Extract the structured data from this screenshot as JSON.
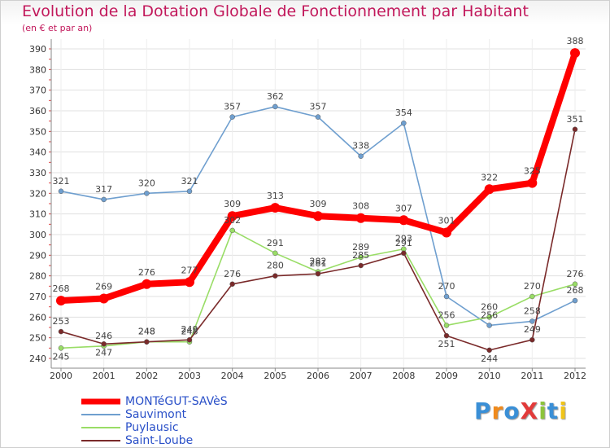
{
  "title": "Evolution de la Dotation Globale de Fonctionnement par Habitant",
  "subtitle": "(en € et par an)",
  "logo_text": "ProXiti",
  "colors": {
    "title": "#c2185b",
    "grid": "#e0e0e0",
    "legend_text": "#2a50c8"
  },
  "chart_data": {
    "type": "line",
    "title": "Evolution de la Dotation Globale de Fonctionnement par Habitant",
    "subtitle": "(en € et par an)",
    "xlabel": "",
    "ylabel": "",
    "categories": [
      "2000",
      "2001",
      "2002",
      "2003",
      "2004",
      "2005",
      "2006",
      "2007",
      "2008",
      "2009",
      "2010",
      "2011",
      "2012"
    ],
    "ylim": [
      240,
      390
    ],
    "yticks": [
      240,
      250,
      260,
      270,
      280,
      290,
      300,
      310,
      320,
      330,
      340,
      350,
      360,
      370,
      380,
      390
    ],
    "grid": true,
    "legend_position": "bottom-left",
    "series": [
      {
        "name": "MONTéGUT-SAVèS",
        "color": "#ff0000",
        "values": [
          268,
          269,
          276,
          277,
          309,
          313,
          309,
          308,
          307,
          301,
          322,
          325,
          388
        ]
      },
      {
        "name": "Sauvimont",
        "color": "#6f9fcf",
        "values": [
          321,
          317,
          320,
          321,
          357,
          362,
          357,
          338,
          354,
          270,
          256,
          258,
          268
        ]
      },
      {
        "name": "Puylausic",
        "color": "#99dd66",
        "values": [
          245,
          246,
          248,
          248,
          302,
          291,
          282,
          289,
          293,
          256,
          260,
          270,
          276
        ]
      },
      {
        "name": "Saint-Loube",
        "color": "#7a2a2a",
        "values": [
          253,
          247,
          248,
          249,
          276,
          280,
          281,
          285,
          291,
          251,
          244,
          249,
          351
        ]
      }
    ]
  }
}
